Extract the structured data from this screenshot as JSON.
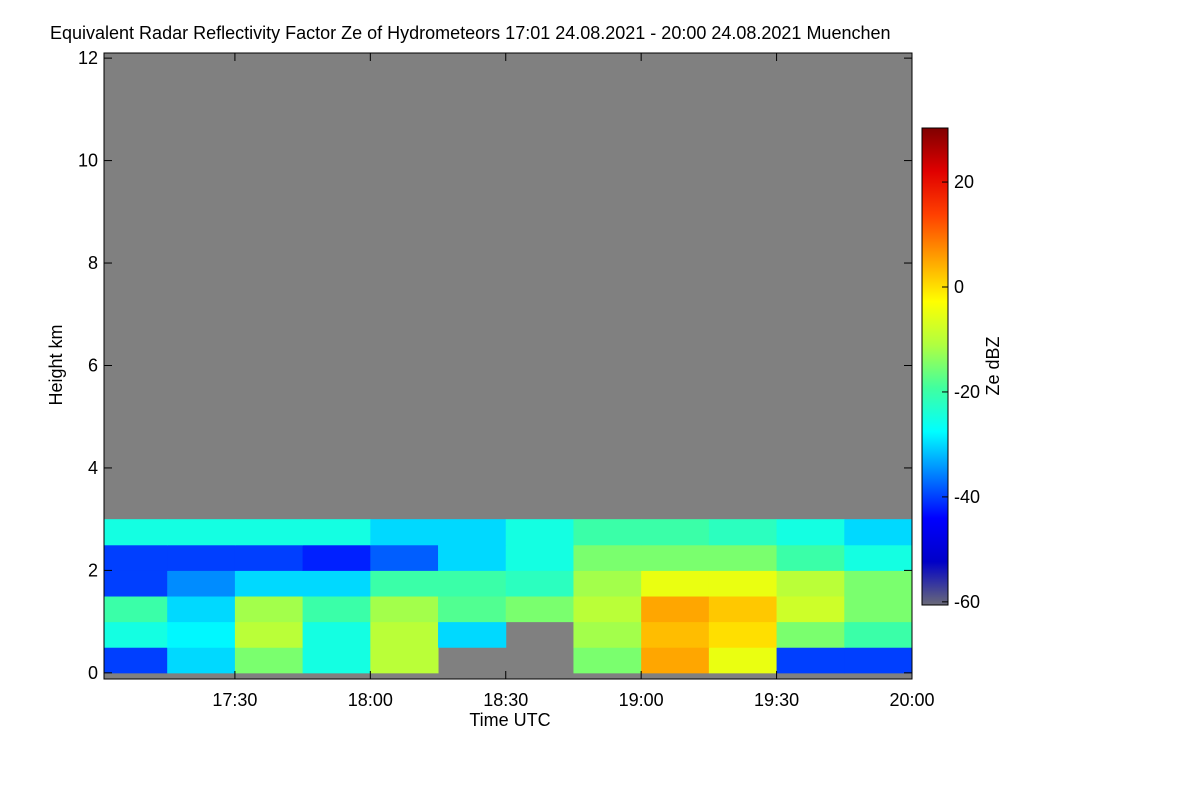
{
  "chart_data": {
    "type": "heatmap",
    "title": "Equivalent Radar Reflectivity Factor Ze of Hydrometeors   17:01 24.08.2021 - 20:00 24.08.2021 Muenchen",
    "x_label": "Time UTC",
    "y_label": "Height km",
    "colorbar_label": "Ze dBZ",
    "xlim": [
      "17:01",
      "20:00"
    ],
    "xticks": [
      "17:30",
      "18:00",
      "18:30",
      "19:00",
      "19:30",
      "20:00"
    ],
    "ylim": [
      -0.12,
      12.1
    ],
    "yticks": [
      0,
      2,
      4,
      6,
      8,
      10,
      12
    ],
    "clim": [
      -60.6,
      30.3
    ],
    "cticks": [
      -60,
      -40,
      -20,
      0,
      20
    ],
    "colormap": [
      "#6a6a78",
      "#0000c8",
      "#0000ff",
      "#0080ff",
      "#00ffff",
      "#40ffa0",
      "#b0ff40",
      "#ffff00",
      "#ffa000",
      "#ff4000",
      "#e00000",
      "#800000"
    ],
    "missing_color": "#808080",
    "x": [
      "17:00",
      "17:15",
      "17:30",
      "17:45",
      "18:00",
      "18:15",
      "18:30",
      "18:45",
      "19:00",
      "19:15",
      "19:30",
      "19:45"
    ],
    "x_step_minutes": 15,
    "y": [
      0,
      0.5,
      1,
      1.5,
      2,
      2.5
    ],
    "y_step": 0.5,
    "z": [
      [
        -40,
        -30,
        -15,
        -25,
        -10,
        null,
        null,
        -15,
        5,
        -5,
        -40,
        -40
      ],
      [
        -25,
        -28,
        -10,
        -25,
        -10,
        -30,
        null,
        -12,
        3,
        0,
        -15,
        -20
      ],
      [
        -20,
        -30,
        -12,
        -20,
        -12,
        -18,
        -15,
        -10,
        5,
        2,
        -8,
        -15
      ],
      [
        -40,
        -35,
        -30,
        -30,
        -20,
        -20,
        -22,
        -12,
        -5,
        -5,
        -10,
        -15
      ],
      [
        -40,
        -40,
        -40,
        -42,
        -38,
        -30,
        -25,
        -15,
        -15,
        -15,
        -20,
        -25
      ],
      [
        -25,
        -25,
        -25,
        -25,
        -30,
        -30,
        -25,
        -20,
        -20,
        -22,
        -25,
        -30
      ]
    ]
  }
}
